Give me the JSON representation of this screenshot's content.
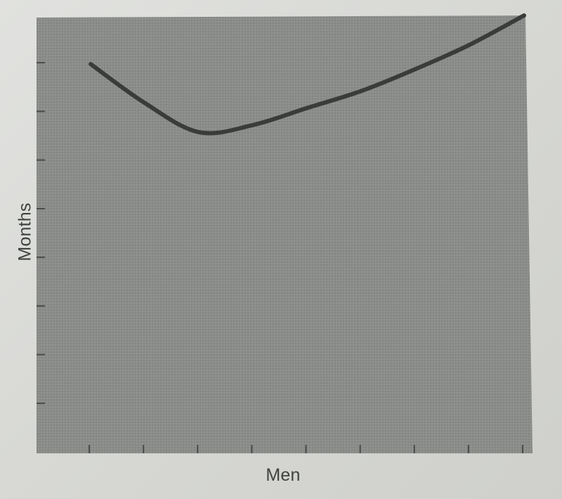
{
  "chart_data": {
    "type": "line",
    "title": "",
    "xlabel": "Men",
    "ylabel": "Months",
    "xlim": [
      0,
      9
    ],
    "ylim": [
      0,
      9
    ],
    "x_ticks": [
      1,
      2,
      3,
      4,
      5,
      6,
      7,
      8,
      9
    ],
    "y_ticks": [
      1,
      2,
      3,
      4,
      5,
      6,
      7,
      8,
      9
    ],
    "tick_labels_shown": false,
    "grid": false,
    "legend": "none",
    "series": [
      {
        "x": [
          1,
          2,
          3,
          4,
          5,
          6,
          7,
          8,
          9
        ],
        "y": [
          8,
          7.2,
          6.6,
          6.75,
          7.1,
          7.45,
          7.9,
          8.4,
          9
        ]
      }
    ],
    "colors": {
      "plot_background": "#8a8c89",
      "curve": "#3a3c3b",
      "axis": "#474a48",
      "page_background": "#d9dad7"
    }
  }
}
